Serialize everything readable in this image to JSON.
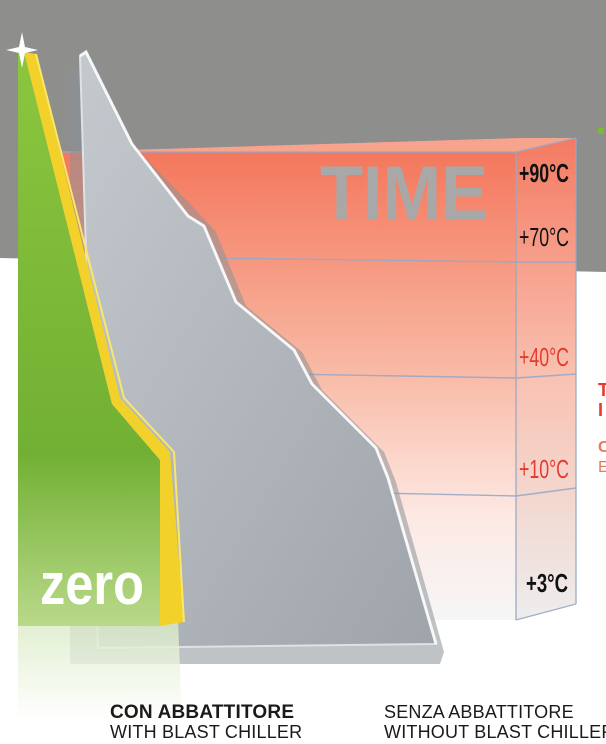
{
  "header": {
    "time_word": "TIME"
  },
  "temperatures": {
    "t90": "+90°C",
    "t70": "+70°C",
    "t40": "+40°C",
    "t10": "+10°C",
    "t3": "+3°C"
  },
  "zero_label": "zero",
  "captions": {
    "with": {
      "it": "CON ABBATTITORE",
      "en": "WITH BLAST CHILLER"
    },
    "without": {
      "it": "SENZA ABBATTITORE",
      "en": "WITHOUT BLAST CHILLER"
    }
  },
  "side_fragments": {
    "line1": "T",
    "line2": "I",
    "line3": "C",
    "line4": "E"
  },
  "colors": {
    "accent_red": "#e53a2e",
    "green": "#7db83a",
    "yellow": "#f2d22a",
    "grey_mountain": "#b3b8bd",
    "top_band": "#8e8e8c"
  }
}
